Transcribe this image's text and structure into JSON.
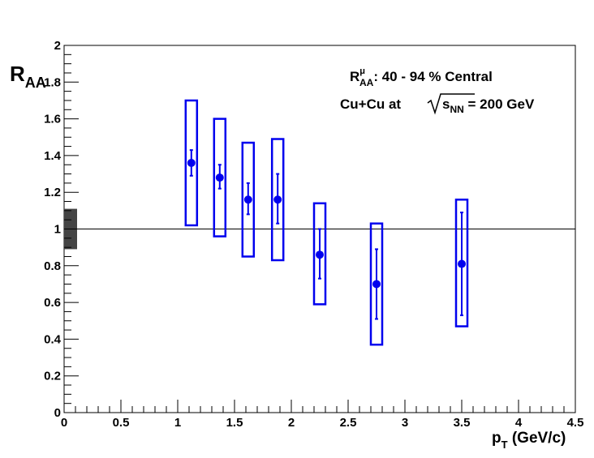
{
  "chart_data": {
    "type": "scatter",
    "title": "",
    "xlabel": "p",
    "xlabel_sub": "T",
    "xlabel_unit": " (GeV/c)",
    "ylabel": "R",
    "ylabel_sub": "AA",
    "xlim": [
      0,
      4.5
    ],
    "ylim": [
      0,
      2
    ],
    "grid": false,
    "x_ticks": [
      "0",
      "0.5",
      "1",
      "1.5",
      "2",
      "2.5",
      "3",
      "3.5",
      "4",
      "4.5"
    ],
    "y_ticks": [
      "0",
      "0.2",
      "0.4",
      "0.6",
      "0.8",
      "1",
      "1.2",
      "1.4",
      "1.6",
      "1.8",
      "2"
    ],
    "reference_line_y": 1,
    "normalization_uncertainty": {
      "low": 0.89,
      "high": 1.11
    },
    "series": [
      {
        "color": "#0000ee",
        "points": [
          {
            "x": 1.12,
            "y": 1.36,
            "stat_low": 1.29,
            "stat_high": 1.43,
            "sys_low": 1.02,
            "sys_high": 1.7
          },
          {
            "x": 1.37,
            "y": 1.28,
            "stat_low": 1.22,
            "stat_high": 1.35,
            "sys_low": 0.96,
            "sys_high": 1.6
          },
          {
            "x": 1.62,
            "y": 1.16,
            "stat_low": 1.08,
            "stat_high": 1.25,
            "sys_low": 0.85,
            "sys_high": 1.47
          },
          {
            "x": 1.88,
            "y": 1.16,
            "stat_low": 1.03,
            "stat_high": 1.3,
            "sys_low": 0.83,
            "sys_high": 1.49
          },
          {
            "x": 2.25,
            "y": 0.86,
            "stat_low": 0.73,
            "stat_high": 1.0,
            "sys_low": 0.59,
            "sys_high": 1.14
          },
          {
            "x": 2.75,
            "y": 0.7,
            "stat_low": 0.51,
            "stat_high": 0.89,
            "sys_low": 0.37,
            "sys_high": 1.03
          },
          {
            "x": 3.5,
            "y": 0.81,
            "stat_low": 0.53,
            "stat_high": 1.09,
            "sys_low": 0.47,
            "sys_high": 1.16
          }
        ]
      }
    ],
    "annotations": {
      "line1_R": "R",
      "line1_sup": "μ",
      "line1_sub": "AA",
      "line1_text": ": 40 - 94 % Central",
      "line2_text": "Cu+Cu at ",
      "line2_s": "s",
      "line2_sub": "NN",
      "line2_after": " = 200 GeV"
    }
  }
}
